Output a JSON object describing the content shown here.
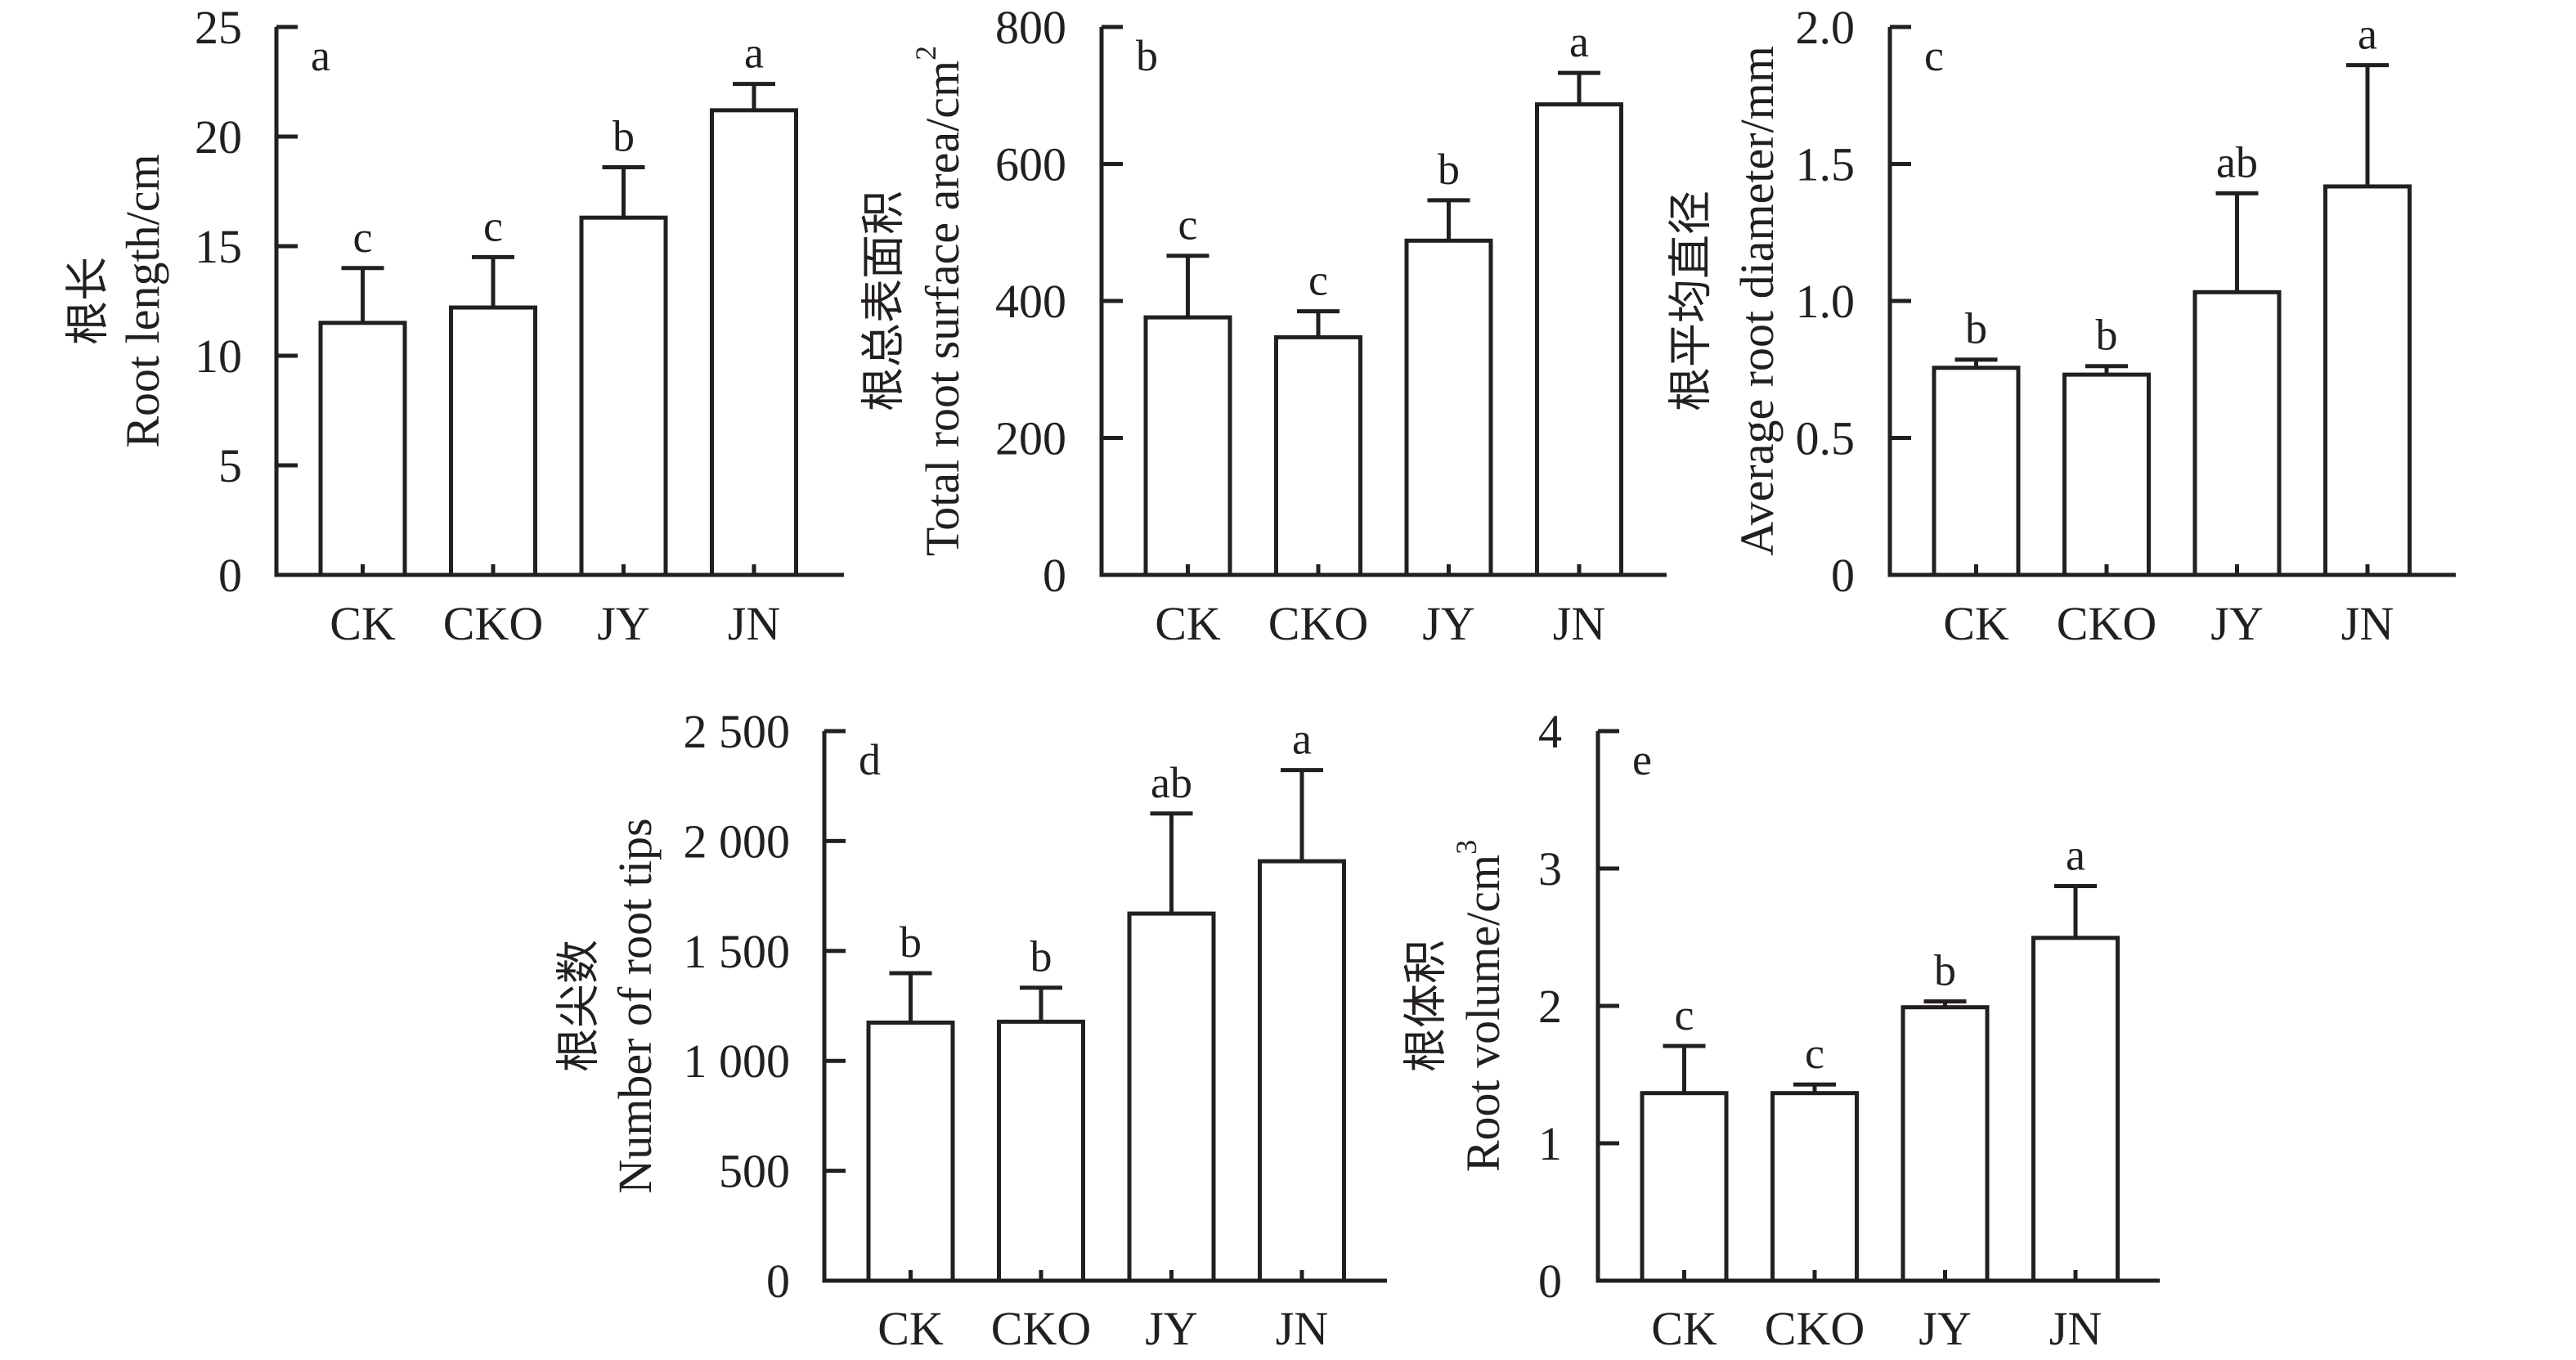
{
  "figure": {
    "categories": [
      "CK",
      "CKO",
      "JY",
      "JN"
    ]
  },
  "chart_data": [
    {
      "type": "bar",
      "panel": "a",
      "title": "",
      "ylabel_cn": "根长",
      "ylabel": "Root length/cm",
      "xlabel": "",
      "categories": [
        "CK",
        "CKO",
        "JY",
        "JN"
      ],
      "values": [
        11.5,
        12.2,
        16.3,
        21.2
      ],
      "error_upper": [
        14.0,
        14.5,
        18.6,
        22.4
      ],
      "significance": [
        "c",
        "c",
        "b",
        "a"
      ],
      "ylim": [
        0,
        25
      ],
      "yticks": [
        0,
        5,
        10,
        15,
        20,
        25
      ],
      "ytick_labels": [
        "0",
        "5",
        "10",
        "15",
        "20",
        "25"
      ],
      "grid": false,
      "legend": "none"
    },
    {
      "type": "bar",
      "panel": "b",
      "title": "",
      "ylabel_cn": "根总表面积",
      "ylabel": "Total root surface area/cm",
      "ylabel_sup": "2",
      "xlabel": "",
      "categories": [
        "CK",
        "CKO",
        "JY",
        "JN"
      ],
      "values": [
        376,
        347,
        488,
        687
      ],
      "error_upper": [
        466,
        385,
        547,
        733
      ],
      "significance": [
        "c",
        "c",
        "b",
        "a"
      ],
      "ylim": [
        0,
        800
      ],
      "yticks": [
        0,
        200,
        400,
        600,
        800
      ],
      "ytick_labels": [
        "0",
        "200",
        "400",
        "600",
        "800"
      ],
      "grid": false,
      "legend": "none"
    },
    {
      "type": "bar",
      "panel": "c",
      "title": "",
      "ylabel_cn": "根平均直径",
      "ylabel": "Average root diameter/mm",
      "xlabel": "",
      "categories": [
        "CK",
        "CKO",
        "JY",
        "JN"
      ],
      "values": [
        0.756,
        0.731,
        1.032,
        1.418
      ],
      "error_upper": [
        0.786,
        0.762,
        1.393,
        1.861
      ],
      "significance": [
        "b",
        "b",
        "ab",
        "a"
      ],
      "ylim": [
        0,
        2.0
      ],
      "yticks": [
        0,
        0.5,
        1.0,
        1.5,
        2.0
      ],
      "ytick_labels": [
        "0",
        "0.5",
        "1.0",
        "1.5",
        "2.0"
      ],
      "grid": false,
      "legend": "none"
    },
    {
      "type": "bar",
      "panel": "d",
      "title": "",
      "ylabel_cn": "根尖数",
      "ylabel": "Number of root tips",
      "xlabel": "",
      "categories": [
        "CK",
        "CKO",
        "JY",
        "JN"
      ],
      "values": [
        1174,
        1178,
        1670,
        1908
      ],
      "error_upper": [
        1399,
        1333,
        2125,
        2323
      ],
      "significance": [
        "b",
        "b",
        "ab",
        "a"
      ],
      "ylim": [
        0,
        2500
      ],
      "yticks": [
        0,
        500,
        1000,
        1500,
        2000,
        2500
      ],
      "ytick_labels": [
        "0",
        "500",
        "1 000",
        "1 500",
        "2 000",
        "2 500"
      ],
      "grid": false,
      "legend": "none"
    },
    {
      "type": "bar",
      "panel": "e",
      "title": "",
      "ylabel_cn": "根体积",
      "ylabel": "Root volume/cm",
      "ylabel_sup": "3",
      "xlabel": "",
      "categories": [
        "CK",
        "CKO",
        "JY",
        "JN"
      ],
      "values": [
        1.365,
        1.365,
        1.99,
        2.495
      ],
      "error_upper": [
        1.708,
        1.428,
        2.033,
        2.872
      ],
      "significance": [
        "c",
        "c",
        "b",
        "a"
      ],
      "ylim": [
        0,
        4
      ],
      "yticks": [
        0,
        1,
        2,
        3,
        4
      ],
      "ytick_labels": [
        "0",
        "1",
        "2",
        "3",
        "4"
      ],
      "grid": false,
      "legend": "none"
    }
  ]
}
